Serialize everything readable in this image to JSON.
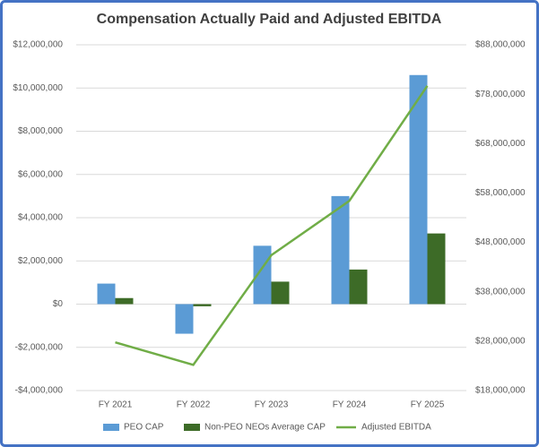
{
  "chart_data": {
    "type": "bar-line",
    "title": "Compensation Actually Paid and Adjusted EBITDA",
    "categories": [
      "FY 2021",
      "FY 2022",
      "FY 2023",
      "FY 2024",
      "FY 2025"
    ],
    "series": [
      {
        "name": "PEO CAP",
        "type": "bar",
        "color": "#5b9bd5",
        "values": [
          950000,
          -1370000,
          2700000,
          5000000,
          10600000
        ]
      },
      {
        "name": "Non-PEO NEOs Average CAP",
        "type": "bar",
        "color": "#3d6b27",
        "values": [
          280000,
          -100000,
          1040000,
          1600000,
          3270000
        ]
      },
      {
        "name": "Adjusted EBITDA",
        "type": "line",
        "axis": "y2",
        "color": "#70ad47",
        "values": [
          27750000,
          23200000,
          45400000,
          56400000,
          79700000
        ]
      }
    ],
    "ylim": [
      -4000000,
      12000000
    ],
    "yticks": [
      {
        "value": -4000000,
        "label": "-$4,000,000"
      },
      {
        "value": -2000000,
        "label": "-$2,000,000"
      },
      {
        "value": 0,
        "label": "$0"
      },
      {
        "value": 2000000,
        "label": "$2,000,000"
      },
      {
        "value": 4000000,
        "label": "$4,000,000"
      },
      {
        "value": 6000000,
        "label": "$6,000,000"
      },
      {
        "value": 8000000,
        "label": "$8,000,000"
      },
      {
        "value": 10000000,
        "label": "$10,000,000"
      },
      {
        "value": 12000000,
        "label": "$12,000,000"
      }
    ],
    "y2lim": [
      18000000,
      88000000
    ],
    "y2ticks": [
      {
        "value": 18000000,
        "label": "$18,000,000"
      },
      {
        "value": 28000000,
        "label": "$28,000,000"
      },
      {
        "value": 38000000,
        "label": "$38,000,000"
      },
      {
        "value": 48000000,
        "label": "$48,000,000"
      },
      {
        "value": 58000000,
        "label": "$58,000,000"
      },
      {
        "value": 68000000,
        "label": "$68,000,000"
      },
      {
        "value": 78000000,
        "label": "$78,000,000"
      },
      {
        "value": 88000000,
        "label": "$88,000,000"
      }
    ],
    "grid": true,
    "legend": "bottom"
  }
}
